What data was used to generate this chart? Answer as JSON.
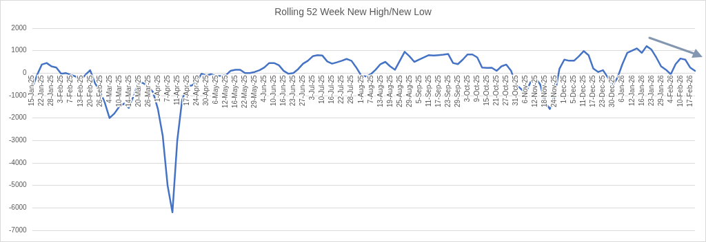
{
  "chart_data": {
    "type": "line",
    "title": "Rolling 52 Week New High/New Low",
    "categories": [
      "15-Jan-25",
      null,
      "22-Jan-25",
      null,
      "28-Jan-25",
      null,
      "3-Feb-25",
      null,
      "7-Feb-25",
      null,
      "13-Feb-25",
      null,
      "20-Feb-25",
      null,
      "26-Feb-25",
      null,
      "4-Mar-25",
      null,
      "10-Mar-25",
      null,
      "14-Mar-25",
      null,
      "20-Mar-25",
      null,
      "26-Mar-25",
      null,
      "1-Apr-25",
      null,
      "7-Apr-25",
      null,
      "11-Apr-25",
      null,
      "17-Apr-25",
      null,
      "24-Apr-25",
      null,
      "30-Apr-25",
      null,
      "6-May-25",
      null,
      "12-May-25",
      null,
      "16-May-25",
      null,
      "22-May-25",
      null,
      "29-May-25",
      null,
      "4-Jun-25",
      null,
      "10-Jun-25",
      null,
      "16-Jun-25",
      null,
      "23-Jun-25",
      null,
      "27-Jun-25",
      null,
      "3-Jul-25",
      null,
      "10-Jul-25",
      null,
      "16-Jul-25",
      null,
      "22-Jul-25",
      null,
      "28-Jul-25",
      null,
      "1-Aug-25",
      null,
      "7-Aug-25",
      null,
      "13-Aug-25",
      null,
      "19-Aug-25",
      null,
      "25-Aug-25",
      null,
      "29-Aug-25",
      null,
      "5-Sep-25",
      null,
      "11-Sep-25",
      null,
      "17-Sep-25",
      null,
      "23-Sep-25",
      null,
      "29-Sep-25",
      null,
      "3-Oct-25",
      null,
      "9-Oct-25",
      null,
      "15-Oct-25",
      null,
      "21-Oct-25",
      null,
      "27-Oct-25",
      null,
      "31-Oct-25",
      null,
      "6-Nov-25",
      null,
      "12-Nov-25",
      null,
      "18-Nov-25",
      null,
      "24-Nov-25",
      null,
      "1-Dec-25",
      null,
      "5-Dec-25",
      null,
      "11-Dec-25",
      null,
      "17-Dec-25",
      null,
      "23-Dec-25",
      null,
      "30-Dec-25",
      null,
      "6-Jan-26",
      null,
      "12-Jan-26",
      null,
      "16-Jan-26",
      null,
      "23-Jan-26",
      null,
      "29-Jan-26",
      null,
      "4-Feb-26",
      null,
      "10-Feb-26",
      null,
      "17-Feb-26",
      null
    ],
    "series": [
      {
        "color": "#4472c4",
        "values": [
          -700,
          -100,
          380,
          450,
          300,
          250,
          -30,
          0,
          -80,
          -150,
          -330,
          -80,
          130,
          -450,
          -800,
          -1300,
          -2000,
          -1800,
          -1500,
          -1350,
          -1550,
          -1000,
          -400,
          -450,
          -600,
          -850,
          -1600,
          -2800,
          -5000,
          -6200,
          -3000,
          -1200,
          -600,
          -550,
          -400,
          -30,
          -100,
          -50,
          -130,
          -120,
          -100,
          100,
          150,
          150,
          0,
          0,
          50,
          130,
          250,
          450,
          450,
          350,
          100,
          -30,
          0,
          180,
          420,
          550,
          750,
          800,
          780,
          520,
          420,
          480,
          550,
          630,
          550,
          250,
          -100,
          -150,
          -50,
          150,
          400,
          500,
          300,
          150,
          550,
          950,
          750,
          500,
          600,
          700,
          800,
          780,
          800,
          820,
          850,
          450,
          400,
          600,
          830,
          830,
          700,
          250,
          230,
          240,
          100,
          300,
          380,
          100,
          -500,
          -700,
          -900,
          -400,
          -200,
          -500,
          -1300,
          -1600,
          -1000,
          200,
          600,
          550,
          550,
          750,
          980,
          800,
          200,
          50,
          130,
          -200,
          -550,
          -200,
          400,
          900,
          1000,
          1100,
          900,
          1200,
          1050,
          700,
          300,
          150,
          -50,
          400,
          650,
          600,
          250,
          100
        ]
      }
    ],
    "ylim": [
      -7000,
      2000
    ],
    "yticks": [
      2000,
      1000,
      0,
      -1000,
      -2000,
      -3000,
      -4000,
      -5000,
      -6000,
      -7000
    ],
    "grid": "y",
    "legend": false,
    "marker": "none",
    "line_style": "solid"
  }
}
